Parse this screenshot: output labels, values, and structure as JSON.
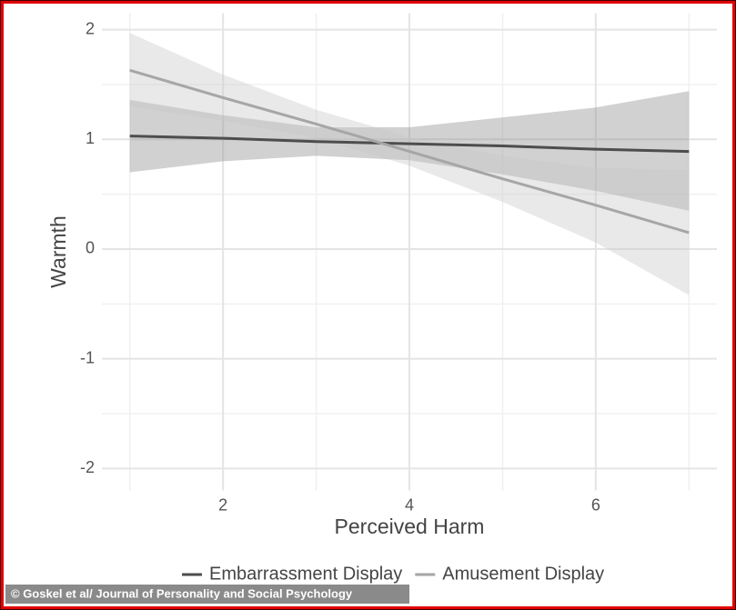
{
  "chart_data": {
    "type": "ribbon-line",
    "x_label": "Perceived Harm",
    "y_label": "Warmth",
    "credit": "© Goskel et al/ Journal of Personality and Social Psychology",
    "x": [
      1,
      2,
      3,
      4,
      5,
      6,
      7
    ],
    "series": [
      {
        "name": "Embarrassment Display",
        "color": "#4d4d4d",
        "band_color": "#8c8c8c",
        "values": [
          1.03,
          1.01,
          0.98,
          0.96,
          0.94,
          0.91,
          0.89
        ],
        "lower": [
          0.7,
          0.8,
          0.85,
          0.81,
          0.68,
          0.53,
          0.35
        ],
        "upper": [
          1.36,
          1.22,
          1.11,
          1.11,
          1.2,
          1.29,
          1.44
        ]
      },
      {
        "name": "Amusement Display",
        "color": "#a6a6a6",
        "band_color": "#c8c8c8",
        "values": [
          1.63,
          1.38,
          1.14,
          0.89,
          0.64,
          0.4,
          0.15
        ],
        "lower": [
          1.3,
          1.17,
          1.01,
          0.76,
          0.43,
          0.06,
          -0.42
        ],
        "upper": [
          1.97,
          1.59,
          1.27,
          1.02,
          0.85,
          0.74,
          0.72
        ]
      }
    ],
    "xlim": [
      0.7,
      7.3
    ],
    "ylim": [
      -2.2,
      2.15
    ],
    "xticks": [
      2,
      4,
      6
    ],
    "yticks": [
      -2,
      -1,
      0,
      1,
      2
    ],
    "x_minor": [
      1,
      3,
      5,
      7
    ],
    "y_minor": [
      -1.5,
      -0.5,
      0.5,
      1.5
    ],
    "grid": true,
    "legend": "bottom"
  }
}
